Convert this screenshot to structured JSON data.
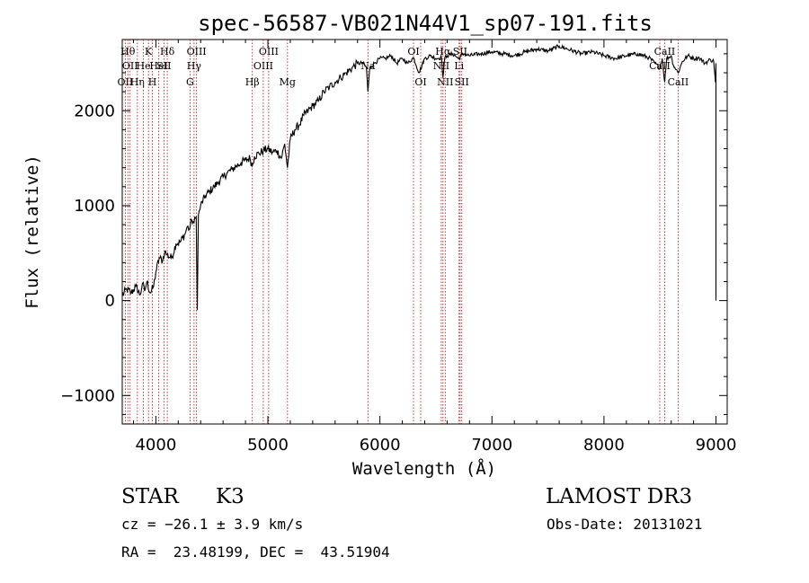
{
  "chart_data": {
    "type": "line",
    "title": "spec-56587-VB021N44V1_sp07-191.fits",
    "xlabel": "Wavelength (Å)",
    "ylabel": "Flux (relative)",
    "xlim": [
      3700,
      9100
    ],
    "ylim": [
      -1300,
      2750
    ],
    "x_ticks": [
      "4000",
      "5000",
      "6000",
      "7000",
      "8000",
      "9000"
    ],
    "y_ticks": [
      "−1000",
      "0",
      "1000",
      "2000"
    ],
    "x_tick_values": [
      4000,
      5000,
      6000,
      7000,
      8000,
      9000
    ],
    "y_tick_values": [
      -1000,
      0,
      1000,
      2000
    ],
    "series": [
      {
        "x": [
          3700,
          3740,
          3780,
          3820,
          3860,
          3880,
          3900,
          3920,
          3950,
          3980,
          4000,
          4030,
          4060,
          4080,
          4100,
          4140,
          4180,
          4220,
          4260,
          4280,
          4300,
          4320,
          4340,
          4360,
          4370,
          4380,
          4400,
          4440,
          4480,
          4520,
          4560,
          4600,
          4640,
          4680,
          4720,
          4760,
          4800,
          4840,
          4861,
          4880,
          4920,
          4960,
          5000,
          5040,
          5080,
          5120,
          5150,
          5175,
          5200,
          5240,
          5280,
          5320,
          5360,
          5400,
          5450,
          5500,
          5550,
          5600,
          5650,
          5700,
          5750,
          5800,
          5850,
          5880,
          5893,
          5910,
          5950,
          6000,
          6050,
          6100,
          6150,
          6200,
          6250,
          6300,
          6350,
          6400,
          6450,
          6500,
          6550,
          6563,
          6580,
          6600,
          6650,
          6700,
          6750,
          6800,
          6900,
          7000,
          7100,
          7200,
          7300,
          7400,
          7500,
          7600,
          7700,
          7800,
          7900,
          8000,
          8100,
          8200,
          8300,
          8400,
          8498,
          8520,
          8542,
          8560,
          8600,
          8620,
          8662,
          8700,
          8750,
          8800,
          8850,
          8900,
          8950,
          8980,
          8995,
          9000
        ],
        "y": [
          50,
          120,
          80,
          150,
          60,
          180,
          100,
          200,
          80,
          150,
          300,
          450,
          420,
          520,
          480,
          450,
          600,
          620,
          700,
          780,
          750,
          850,
          820,
          880,
          -100,
          900,
          1000,
          1100,
          1150,
          1200,
          1250,
          1300,
          1350,
          1380,
          1420,
          1450,
          1480,
          1500,
          1420,
          1520,
          1550,
          1580,
          1600,
          1560,
          1580,
          1500,
          1650,
          1400,
          1700,
          1800,
          1850,
          1950,
          2000,
          2050,
          2100,
          2200,
          2250,
          2300,
          2350,
          2400,
          2450,
          2500,
          2500,
          2450,
          2200,
          2450,
          2500,
          2550,
          2550,
          2580,
          2500,
          2550,
          2500,
          2560,
          2400,
          2550,
          2580,
          2550,
          2560,
          2350,
          2560,
          2580,
          2600,
          2550,
          2600,
          2580,
          2600,
          2620,
          2600,
          2580,
          2620,
          2650,
          2630,
          2680,
          2640,
          2600,
          2620,
          2580,
          2550,
          2580,
          2600,
          2560,
          2450,
          2550,
          2300,
          2550,
          2580,
          2480,
          2400,
          2520,
          2580,
          2550,
          2560,
          2500,
          2540,
          2520,
          2300,
          2500
        ]
      }
    ],
    "lines": [
      {
        "w": 3727,
        "label": "OII",
        "row": 3
      },
      {
        "w": 3750,
        "label": "Hθ",
        "row": 1
      },
      {
        "w": 3770,
        "label": "OII",
        "row": 2
      },
      {
        "w": 3835,
        "label": "Hη",
        "row": 3
      },
      {
        "w": 3889,
        "label": "He",
        "row": 2
      },
      {
        "w": 3934,
        "label": "K",
        "row": 1
      },
      {
        "w": 3969,
        "label": "H",
        "row": 3
      },
      {
        "w": 4026,
        "label": "HeI",
        "row": 2
      },
      {
        "w": 4072,
        "label": "SII",
        "row": 2
      },
      {
        "w": 4102,
        "label": "Hδ",
        "row": 1
      },
      {
        "w": 4305,
        "label": "G",
        "row": 3
      },
      {
        "w": 4341,
        "label": "Hγ",
        "row": 2
      },
      {
        "w": 4363,
        "label": "OIII",
        "row": 1
      },
      {
        "w": 4861,
        "label": "Hβ",
        "row": 3
      },
      {
        "w": 4959,
        "label": "OIII",
        "row": 2
      },
      {
        "w": 5007,
        "label": "OIII",
        "row": 1
      },
      {
        "w": 5175,
        "label": "Mg",
        "row": 3
      },
      {
        "w": 5893,
        "label": "Na",
        "row": 2
      },
      {
        "w": 6300,
        "label": "OI",
        "row": 1
      },
      {
        "w": 6364,
        "label": "OI",
        "row": 3
      },
      {
        "w": 6548,
        "label": "NII",
        "row": 2
      },
      {
        "w": 6563,
        "label": "Hα",
        "row": 1
      },
      {
        "w": 6583,
        "label": "NII",
        "row": 3
      },
      {
        "w": 6707,
        "label": "Li",
        "row": 2
      },
      {
        "w": 6716,
        "label": "SII",
        "row": 1
      },
      {
        "w": 6731,
        "label": "SII",
        "row": 3
      },
      {
        "w": 8498,
        "label": "CaII",
        "row": 2
      },
      {
        "w": 8542,
        "label": "CaII",
        "row": 1
      },
      {
        "w": 8662,
        "label": "CaII",
        "row": 3
      }
    ]
  },
  "info": {
    "object_class": "STAR",
    "subclass": "K3",
    "survey": "LAMOST DR3",
    "cz": "cz = −26.1 ± 3.9 km/s",
    "obs_date": "Obs-Date: 20131021",
    "coords": "RA =  23.48199, DEC =  43.51904"
  }
}
